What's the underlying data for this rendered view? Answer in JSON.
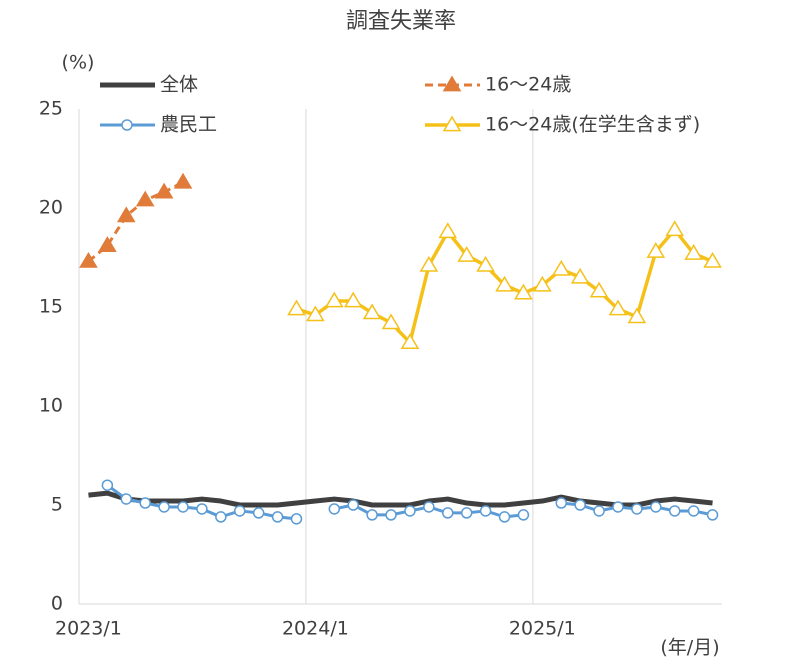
{
  "chart_data": {
    "type": "line",
    "title": "調査失業率",
    "y_label": "(%)",
    "x_label": "(年/月)",
    "categories": [
      "2023/1",
      null,
      null,
      null,
      null,
      null,
      null,
      null,
      null,
      null,
      null,
      null,
      "2024/1",
      null,
      null,
      null,
      null,
      null,
      null,
      null,
      null,
      null,
      null,
      null,
      "2025/1",
      null,
      null,
      null,
      null,
      null,
      null,
      null,
      null,
      null
    ],
    "ylim": [
      0,
      25
    ],
    "yticks": [
      0,
      5,
      10,
      15,
      20,
      25
    ],
    "grid": true,
    "series": [
      {
        "name": "全体",
        "color": "#404040",
        "marker": "none",
        "dash": false,
        "width": 5,
        "values": [
          5.5,
          5.6,
          5.3,
          5.2,
          5.2,
          5.2,
          5.3,
          5.2,
          5.0,
          5.0,
          5.0,
          5.1,
          5.2,
          5.3,
          5.2,
          5.0,
          5.0,
          5.0,
          5.2,
          5.3,
          5.1,
          5.0,
          5.0,
          5.1,
          5.2,
          5.4,
          5.2,
          5.1,
          5.0,
          5.0,
          5.2,
          5.3,
          5.2,
          5.1
        ]
      },
      {
        "name": "16～24歳",
        "color": "#e07b39",
        "marker": "triangle-filled",
        "dash": true,
        "width": 3,
        "values": [
          17.3,
          18.1,
          19.6,
          20.4,
          20.8,
          21.3,
          null,
          null,
          null,
          null,
          null,
          null,
          null,
          null,
          null,
          null,
          null,
          null,
          null,
          null,
          null,
          null,
          null,
          null,
          null,
          null,
          null,
          null,
          null,
          null,
          null,
          null,
          null,
          null
        ]
      },
      {
        "name": "農民工",
        "color": "#5b9bd5",
        "marker": "circle-open",
        "dash": false,
        "width": 3,
        "values": [
          null,
          6.0,
          5.3,
          5.1,
          4.9,
          4.9,
          4.8,
          4.4,
          4.7,
          4.6,
          4.4,
          4.3,
          null,
          4.8,
          5.0,
          4.5,
          4.5,
          4.7,
          4.9,
          4.6,
          4.6,
          4.7,
          4.4,
          4.5,
          null,
          5.1,
          5.0,
          4.7,
          4.9,
          4.8,
          4.9,
          4.7,
          4.7,
          4.5
        ]
      },
      {
        "name": "16～24歳(在学生含まず)",
        "color": "#f5c018",
        "marker": "triangle-open",
        "dash": false,
        "width": 3.5,
        "values": [
          null,
          null,
          null,
          null,
          null,
          null,
          null,
          null,
          null,
          null,
          null,
          14.9,
          14.6,
          15.3,
          15.3,
          14.7,
          14.2,
          13.2,
          17.1,
          18.8,
          17.6,
          17.1,
          16.1,
          15.7,
          16.1,
          16.9,
          16.5,
          15.8,
          14.9,
          14.5,
          17.8,
          18.9,
          17.7,
          17.3
        ]
      }
    ]
  }
}
